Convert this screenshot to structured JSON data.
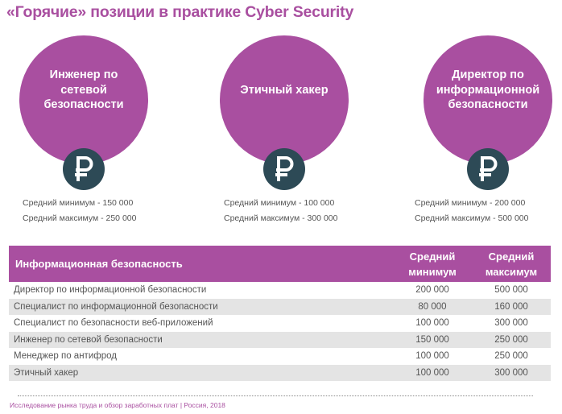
{
  "title": "«Горячие» позиции в практике Cyber Security",
  "cards": [
    {
      "title": "Инженер по сетевой безопасности",
      "min": "Средний минимум - 150 000",
      "max": "Средний максимум - 250 000",
      "icon": "ruble-icon"
    },
    {
      "title": "Этичный хакер",
      "min": "Средний минимум - 100 000",
      "max": "Средний максимум - 300 000",
      "icon": "ruble-icon"
    },
    {
      "title": "Директор по информационной безопасности",
      "min": "Средний минимум - 200 000",
      "max": "Средний максимум - 500 000",
      "icon": "ruble-icon"
    }
  ],
  "table": {
    "header": {
      "name": "Информационная безопасность",
      "min": "Средний минимум",
      "max": "Средний максимум"
    },
    "rows": [
      {
        "name": "Директор по информационной безопасности",
        "min": "200 000",
        "max": "500 000"
      },
      {
        "name": "Специалист по информационной безопасности",
        "min": "80 000",
        "max": "160 000"
      },
      {
        "name": "Специалист по безопасности веб-приложений",
        "min": "100 000",
        "max": "300 000"
      },
      {
        "name": "Инженер по сетевой безопасности",
        "min": "150 000",
        "max": "250 000"
      },
      {
        "name": "Менеджер по антифрод",
        "min": "100 000",
        "max": "250 000"
      },
      {
        "name": "Этичный хакер",
        "min": "100 000",
        "max": "300 000"
      }
    ]
  },
  "footer": "Исследование рынка труда и обзор заработных плат  | Россия, 2018",
  "colors": {
    "accent": "#a94fa0",
    "coin": "#2d4a56",
    "row_shade": "#e4e4e4"
  }
}
